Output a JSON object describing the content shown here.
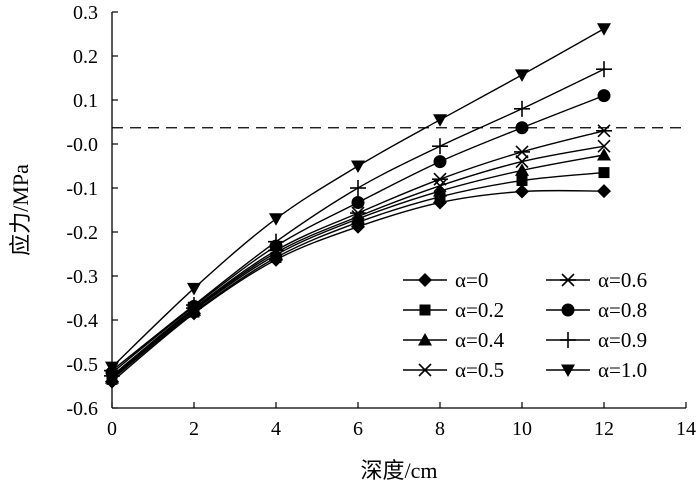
{
  "chart_data": {
    "type": "line",
    "xlabel": "深度/cm",
    "ylabel": "应力/MPa",
    "xlim": [
      0,
      14
    ],
    "ylim": [
      -0.6,
      0.3
    ],
    "xticks": [
      "0",
      "2",
      "4",
      "6",
      "8",
      "10",
      "12",
      "14"
    ],
    "yticks": [
      "0.3",
      "0.2",
      "0.1",
      "-0.0",
      "-0.1",
      "-0.2",
      "-0.3",
      "-0.4",
      "-0.5",
      "-0.6"
    ],
    "grid": false,
    "legend_position": "bottom-right",
    "reference_line": {
      "y": 0.037,
      "style": "dashed"
    },
    "x": [
      0,
      2,
      4,
      6,
      8,
      10,
      12
    ],
    "series": [
      {
        "name": "α=0",
        "marker": "diamond",
        "values": [
          -0.54,
          -0.385,
          -0.263,
          -0.188,
          -0.133,
          -0.108,
          -0.107
        ]
      },
      {
        "name": "α=0.2",
        "marker": "square",
        "values": [
          -0.535,
          -0.382,
          -0.258,
          -0.178,
          -0.12,
          -0.083,
          -0.065
        ]
      },
      {
        "name": "α=0.4",
        "marker": "triangle-up",
        "values": [
          -0.532,
          -0.378,
          -0.252,
          -0.17,
          -0.107,
          -0.06,
          -0.025
        ]
      },
      {
        "name": "α=0.5",
        "marker": "x",
        "values": [
          -0.53,
          -0.376,
          -0.247,
          -0.165,
          -0.095,
          -0.04,
          -0.005
        ]
      },
      {
        "name": "α=0.6",
        "marker": "asterisk",
        "values": [
          -0.527,
          -0.373,
          -0.242,
          -0.157,
          -0.08,
          -0.018,
          0.03
        ]
      },
      {
        "name": "α=0.8",
        "marker": "circle",
        "values": [
          -0.52,
          -0.369,
          -0.232,
          -0.133,
          -0.04,
          0.037,
          0.11
        ]
      },
      {
        "name": "α=0.9",
        "marker": "plus",
        "values": [
          -0.515,
          -0.366,
          -0.222,
          -0.1,
          -0.005,
          0.08,
          0.17
        ]
      },
      {
        "name": "α=1.0",
        "marker": "triangle-down",
        "values": [
          -0.507,
          -0.328,
          -0.17,
          -0.05,
          0.055,
          0.157,
          0.262
        ]
      }
    ]
  }
}
